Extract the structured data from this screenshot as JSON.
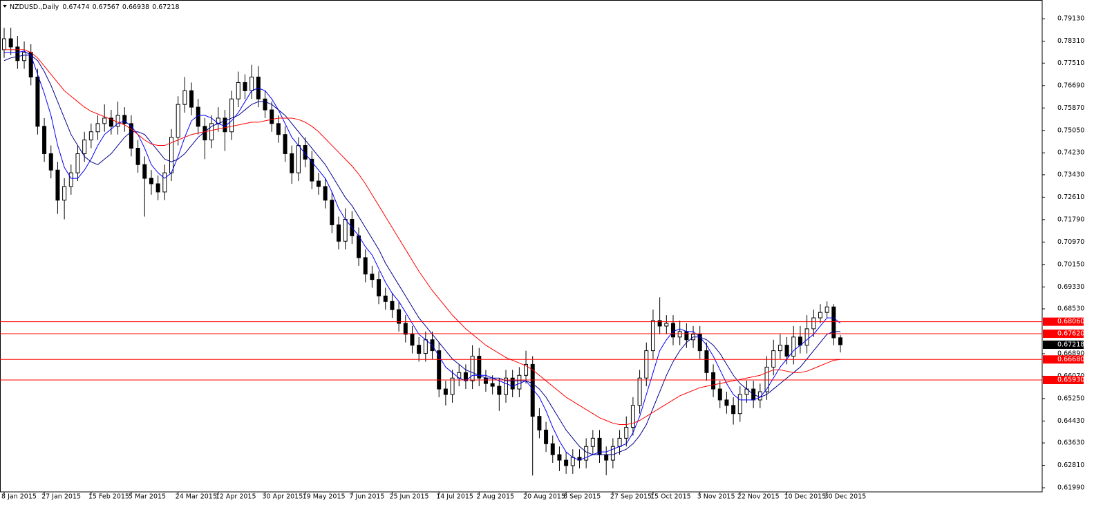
{
  "chart_data": {
    "type": "candlestick",
    "title": "NZDUSD.,Daily",
    "header_ohlc": [
      0.67474,
      0.67567,
      0.66938,
      0.67218
    ],
    "categories": [
      "8 Jan 2015",
      null,
      null,
      null,
      null,
      null,
      "27 Jan 2015",
      null,
      null,
      null,
      null,
      null,
      null,
      "15 Feb 2015",
      null,
      null,
      null,
      null,
      null,
      "5 Mar 2015",
      null,
      null,
      null,
      null,
      null,
      null,
      "24 Mar 2015",
      null,
      null,
      null,
      null,
      null,
      "12 Apr 2015",
      null,
      null,
      null,
      null,
      null,
      null,
      "30 Apr 2015",
      null,
      null,
      null,
      null,
      null,
      "19 May 2015",
      null,
      null,
      null,
      null,
      null,
      null,
      "7 Jun 2015",
      null,
      null,
      null,
      null,
      null,
      "25 Jun 2015",
      null,
      null,
      null,
      null,
      null,
      null,
      "14 Jul 2015",
      null,
      null,
      null,
      null,
      null,
      "2 Aug 2015",
      null,
      null,
      null,
      null,
      null,
      null,
      "20 Aug 2015",
      null,
      null,
      null,
      null,
      null,
      "8 Sep 2015",
      null,
      null,
      null,
      null,
      null,
      null,
      "27 Sep 2015",
      null,
      null,
      null,
      null,
      null,
      "15 Oct 2015",
      null,
      null,
      null,
      null,
      null,
      null,
      "3 Nov 2015",
      null,
      null,
      null,
      null,
      null,
      "22 Nov 2015",
      null,
      null,
      null,
      null,
      null,
      null,
      "10 Dec 2015",
      null,
      null,
      null,
      null,
      null,
      "30 Dec 2015",
      null,
      null
    ],
    "open": [
      0.78,
      0.784,
      0.781,
      0.776,
      0.779,
      0.77,
      0.752,
      0.742,
      0.736,
      0.725,
      0.73,
      0.735,
      0.742,
      0.747,
      0.75,
      0.753,
      0.755,
      0.752,
      0.756,
      0.753,
      0.744,
      0.738,
      0.733,
      0.731,
      0.728,
      0.735,
      0.748,
      0.76,
      0.765,
      0.759,
      0.752,
      0.747,
      0.753,
      0.755,
      0.75,
      0.762,
      0.768,
      0.765,
      0.77,
      0.762,
      0.758,
      0.753,
      0.749,
      0.742,
      0.735,
      0.745,
      0.74,
      0.732,
      0.73,
      0.725,
      0.716,
      0.71,
      0.718,
      0.712,
      0.704,
      0.698,
      0.696,
      0.69,
      0.688,
      0.685,
      0.68,
      0.676,
      0.672,
      0.669,
      0.674,
      0.67,
      0.656,
      0.654,
      0.66,
      0.662,
      0.659,
      0.668,
      0.66,
      0.658,
      0.657,
      0.654,
      0.66,
      0.656,
      0.661,
      0.665,
      0.646,
      0.641,
      0.636,
      0.632,
      0.63,
      0.628,
      0.631,
      0.63,
      0.635,
      0.638,
      0.632,
      0.63,
      0.635,
      0.638,
      0.642,
      0.65,
      0.66,
      0.67,
      0.681,
      0.679,
      0.68,
      0.675,
      0.677,
      0.674,
      0.676,
      0.67,
      0.662,
      0.656,
      0.652,
      0.65,
      0.647,
      0.654,
      0.656,
      0.652,
      0.655,
      0.664,
      0.67,
      0.672,
      0.668,
      0.675,
      0.672,
      0.678,
      0.682,
      0.684,
      0.686,
      0.67474
    ],
    "high": [
      0.788,
      0.788,
      0.785,
      0.783,
      0.782,
      0.773,
      0.755,
      0.745,
      0.739,
      0.733,
      0.738,
      0.745,
      0.75,
      0.753,
      0.756,
      0.76,
      0.758,
      0.761,
      0.759,
      0.756,
      0.747,
      0.741,
      0.736,
      0.734,
      0.738,
      0.751,
      0.763,
      0.77,
      0.768,
      0.762,
      0.755,
      0.756,
      0.759,
      0.758,
      0.765,
      0.772,
      0.771,
      0.7745,
      0.774,
      0.765,
      0.761,
      0.756,
      0.752,
      0.745,
      0.748,
      0.748,
      0.743,
      0.735,
      0.733,
      0.728,
      0.719,
      0.722,
      0.721,
      0.715,
      0.707,
      0.701,
      0.699,
      0.693,
      0.691,
      0.688,
      0.683,
      0.679,
      0.675,
      0.677,
      0.677,
      0.673,
      0.659,
      0.663,
      0.665,
      0.665,
      0.672,
      0.671,
      0.663,
      0.661,
      0.66,
      0.663,
      0.663,
      0.664,
      0.67,
      0.668,
      0.649,
      0.644,
      0.639,
      0.635,
      0.633,
      0.634,
      0.634,
      0.638,
      0.641,
      0.641,
      0.635,
      0.638,
      0.641,
      0.646,
      0.653,
      0.663,
      0.673,
      0.685,
      0.6895,
      0.683,
      0.683,
      0.681,
      0.68,
      0.679,
      0.679,
      0.673,
      0.665,
      0.659,
      0.655,
      0.653,
      0.657,
      0.659,
      0.659,
      0.658,
      0.668,
      0.674,
      0.676,
      0.675,
      0.679,
      0.679,
      0.683,
      0.685,
      0.687,
      0.688,
      0.687,
      0.67567
    ],
    "low": [
      0.777,
      0.778,
      0.773,
      0.773,
      0.767,
      0.749,
      0.739,
      0.733,
      0.72,
      0.718,
      0.727,
      0.732,
      0.739,
      0.744,
      0.747,
      0.75,
      0.749,
      0.749,
      0.75,
      0.741,
      0.735,
      0.719,
      0.727,
      0.725,
      0.725,
      0.732,
      0.745,
      0.757,
      0.756,
      0.749,
      0.74,
      0.744,
      0.75,
      0.743,
      0.747,
      0.759,
      0.762,
      0.762,
      0.759,
      0.755,
      0.75,
      0.746,
      0.739,
      0.731,
      0.732,
      0.737,
      0.729,
      0.727,
      0.722,
      0.713,
      0.707,
      0.707,
      0.709,
      0.701,
      0.695,
      0.693,
      0.687,
      0.685,
      0.682,
      0.677,
      0.673,
      0.669,
      0.666,
      0.666,
      0.667,
      0.653,
      0.65,
      0.651,
      0.657,
      0.656,
      0.656,
      0.657,
      0.655,
      0.654,
      0.648,
      0.651,
      0.653,
      0.653,
      0.658,
      0.6244,
      0.638,
      0.633,
      0.629,
      0.626,
      0.625,
      0.625,
      0.627,
      0.627,
      0.632,
      0.629,
      0.6245,
      0.627,
      0.632,
      0.635,
      0.639,
      0.647,
      0.657,
      0.667,
      0.676,
      0.676,
      0.672,
      0.672,
      0.671,
      0.671,
      0.667,
      0.659,
      0.653,
      0.649,
      0.647,
      0.643,
      0.644,
      0.651,
      0.649,
      0.649,
      0.652,
      0.661,
      0.667,
      0.665,
      0.665,
      0.669,
      0.669,
      0.675,
      0.68,
      0.682,
      0.672,
      0.66938
    ],
    "close": [
      0.784,
      0.781,
      0.776,
      0.779,
      0.77,
      0.752,
      0.742,
      0.736,
      0.725,
      0.73,
      0.735,
      0.742,
      0.747,
      0.75,
      0.753,
      0.755,
      0.752,
      0.756,
      0.753,
      0.744,
      0.738,
      0.733,
      0.731,
      0.728,
      0.735,
      0.748,
      0.76,
      0.765,
      0.759,
      0.752,
      0.747,
      0.753,
      0.755,
      0.75,
      0.762,
      0.768,
      0.765,
      0.77,
      0.762,
      0.758,
      0.753,
      0.749,
      0.742,
      0.735,
      0.745,
      0.74,
      0.732,
      0.73,
      0.725,
      0.716,
      0.71,
      0.718,
      0.712,
      0.704,
      0.698,
      0.696,
      0.69,
      0.688,
      0.685,
      0.68,
      0.676,
      0.672,
      0.669,
      0.674,
      0.67,
      0.656,
      0.654,
      0.66,
      0.662,
      0.659,
      0.668,
      0.66,
      0.658,
      0.657,
      0.654,
      0.66,
      0.656,
      0.661,
      0.665,
      0.646,
      0.641,
      0.636,
      0.632,
      0.63,
      0.628,
      0.631,
      0.63,
      0.635,
      0.638,
      0.632,
      0.63,
      0.635,
      0.638,
      0.642,
      0.65,
      0.66,
      0.67,
      0.681,
      0.679,
      0.68,
      0.675,
      0.677,
      0.674,
      0.676,
      0.67,
      0.662,
      0.656,
      0.652,
      0.65,
      0.647,
      0.654,
      0.656,
      0.652,
      0.655,
      0.664,
      0.67,
      0.672,
      0.668,
      0.675,
      0.672,
      0.678,
      0.682,
      0.684,
      0.686,
      0.6747,
      0.67218
    ],
    "bull_color": "#ffffff",
    "bear_color": "#000000",
    "outline_color": "#000000",
    "series": [
      {
        "color": "#0000ff",
        "values": [
          0.779,
          0.779,
          0.779,
          0.7795,
          0.778,
          0.771,
          0.764,
          0.756,
          0.745,
          0.737,
          0.733,
          0.733,
          0.736,
          0.74,
          0.745,
          0.749,
          0.751,
          0.753,
          0.754,
          0.752,
          0.749,
          0.744,
          0.738,
          0.735,
          0.733,
          0.735,
          0.741,
          0.748,
          0.754,
          0.756,
          0.756,
          0.755,
          0.753,
          0.752,
          0.754,
          0.757,
          0.761,
          0.765,
          0.766,
          0.765,
          0.762,
          0.758,
          0.753,
          0.748,
          0.745,
          0.742,
          0.739,
          0.736,
          0.733,
          0.728,
          0.722,
          0.718,
          0.715,
          0.712,
          0.708,
          0.705,
          0.7,
          0.695,
          0.691,
          0.688,
          0.684,
          0.68,
          0.676,
          0.674,
          0.672,
          0.668,
          0.664,
          0.662,
          0.66,
          0.659,
          0.661,
          0.661,
          0.661,
          0.66,
          0.659,
          0.658,
          0.657,
          0.658,
          0.659,
          0.656,
          0.653,
          0.648,
          0.642,
          0.637,
          0.633,
          0.631,
          0.63,
          0.631,
          0.632,
          0.633,
          0.633,
          0.634,
          0.635,
          0.636,
          0.64,
          0.646,
          0.654,
          0.662,
          0.67,
          0.674,
          0.677,
          0.678,
          0.677,
          0.677,
          0.675,
          0.672,
          0.668,
          0.663,
          0.658,
          0.654,
          0.652,
          0.652,
          0.652,
          0.653,
          0.656,
          0.66,
          0.664,
          0.667,
          0.67,
          0.672,
          0.674,
          0.676,
          0.679,
          0.682,
          0.682,
          0.68
        ]
      },
      {
        "color": "#00008b",
        "values": [
          0.776,
          0.777,
          0.7775,
          0.778,
          0.778,
          0.776,
          0.772,
          0.767,
          0.761,
          0.755,
          0.749,
          0.745,
          0.741,
          0.739,
          0.738,
          0.74,
          0.742,
          0.745,
          0.748,
          0.75,
          0.75,
          0.749,
          0.746,
          0.743,
          0.74,
          0.739,
          0.74,
          0.742,
          0.745,
          0.748,
          0.75,
          0.752,
          0.753,
          0.754,
          0.755,
          0.756,
          0.758,
          0.76,
          0.761,
          0.761,
          0.76,
          0.758,
          0.756,
          0.753,
          0.75,
          0.747,
          0.744,
          0.741,
          0.738,
          0.734,
          0.73,
          0.726,
          0.723,
          0.719,
          0.715,
          0.711,
          0.707,
          0.702,
          0.698,
          0.694,
          0.69,
          0.686,
          0.682,
          0.679,
          0.676,
          0.673,
          0.67,
          0.667,
          0.665,
          0.663,
          0.662,
          0.661,
          0.66,
          0.66,
          0.66,
          0.659,
          0.659,
          0.659,
          0.659,
          0.658,
          0.656,
          0.653,
          0.649,
          0.645,
          0.641,
          0.638,
          0.635,
          0.633,
          0.632,
          0.632,
          0.632,
          0.632,
          0.633,
          0.634,
          0.636,
          0.639,
          0.643,
          0.649,
          0.655,
          0.661,
          0.666,
          0.67,
          0.673,
          0.675,
          0.675,
          0.674,
          0.672,
          0.669,
          0.665,
          0.661,
          0.658,
          0.656,
          0.654,
          0.653,
          0.654,
          0.656,
          0.658,
          0.66,
          0.662,
          0.664,
          0.667,
          0.67,
          0.673,
          0.676,
          0.677,
          0.677
        ]
      },
      {
        "color": "#ff0000",
        "values": [
          0.78,
          0.78,
          0.78,
          0.78,
          0.779,
          0.777,
          0.774,
          0.771,
          0.768,
          0.765,
          0.763,
          0.761,
          0.759,
          0.7575,
          0.7565,
          0.7555,
          0.7545,
          0.7535,
          0.7525,
          0.751,
          0.749,
          0.747,
          0.7455,
          0.745,
          0.745,
          0.746,
          0.747,
          0.748,
          0.749,
          0.7495,
          0.75,
          0.7505,
          0.751,
          0.7515,
          0.752,
          0.7525,
          0.753,
          0.7535,
          0.7535,
          0.754,
          0.7545,
          0.755,
          0.755,
          0.755,
          0.7545,
          0.7535,
          0.752,
          0.75,
          0.7475,
          0.745,
          0.7425,
          0.74,
          0.7375,
          0.7345,
          0.731,
          0.727,
          0.723,
          0.719,
          0.715,
          0.711,
          0.707,
          0.703,
          0.699,
          0.6955,
          0.692,
          0.689,
          0.686,
          0.683,
          0.6805,
          0.678,
          0.676,
          0.674,
          0.672,
          0.6705,
          0.669,
          0.6675,
          0.6665,
          0.6655,
          0.6645,
          0.663,
          0.661,
          0.659,
          0.657,
          0.655,
          0.653,
          0.6515,
          0.65,
          0.6485,
          0.647,
          0.6455,
          0.6445,
          0.6435,
          0.643,
          0.643,
          0.6435,
          0.6445,
          0.646,
          0.6475,
          0.649,
          0.6505,
          0.652,
          0.6535,
          0.6545,
          0.6555,
          0.6565,
          0.657,
          0.6575,
          0.658,
          0.6585,
          0.659,
          0.6595,
          0.66,
          0.6605,
          0.661,
          0.662,
          0.663,
          0.663,
          0.6625,
          0.662,
          0.662,
          0.6625,
          0.6635,
          0.6645,
          0.6655,
          0.6665,
          0.6668
        ]
      }
    ],
    "levels": [
      {
        "value": 0.6806,
        "label": "0.68060"
      },
      {
        "value": 0.6762,
        "label": "0.67620"
      },
      {
        "value": 0.6668,
        "label": "0.66680"
      },
      {
        "value": 0.6593,
        "label": "0.65930"
      }
    ],
    "level_color": "#ff0000",
    "last_price": 0.67218,
    "ylim": [
      0.6184,
      0.7974
    ],
    "yticks": [
      {
        "value": 0.7913,
        "label": "0.79130"
      },
      {
        "value": 0.7831,
        "label": "0.78310"
      },
      {
        "value": 0.7751,
        "label": "0.77510"
      },
      {
        "value": 0.7669,
        "label": "0.76690"
      },
      {
        "value": 0.7587,
        "label": "0.75870"
      },
      {
        "value": 0.7505,
        "label": "0.75050"
      },
      {
        "value": 0.7423,
        "label": "0.74230"
      },
      {
        "value": 0.7343,
        "label": "0.73430"
      },
      {
        "value": 0.7261,
        "label": "0.72610"
      },
      {
        "value": 0.7179,
        "label": "0.71790"
      },
      {
        "value": 0.7097,
        "label": "0.70970"
      },
      {
        "value": 0.7015,
        "label": "0.70150"
      },
      {
        "value": 0.6933,
        "label": "0.69330"
      },
      {
        "value": 0.6853,
        "label": "0.68530"
      },
      {
        "value": 0.6689,
        "label": "0.66890"
      },
      {
        "value": 0.6607,
        "label": "0.66070"
      },
      {
        "value": 0.6525,
        "label": "0.65250"
      },
      {
        "value": 0.6443,
        "label": "0.64430"
      },
      {
        "value": 0.6363,
        "label": "0.63630"
      },
      {
        "value": 0.6281,
        "label": "0.62810"
      },
      {
        "value": 0.6199,
        "label": "0.61990"
      }
    ],
    "grid": false
  }
}
